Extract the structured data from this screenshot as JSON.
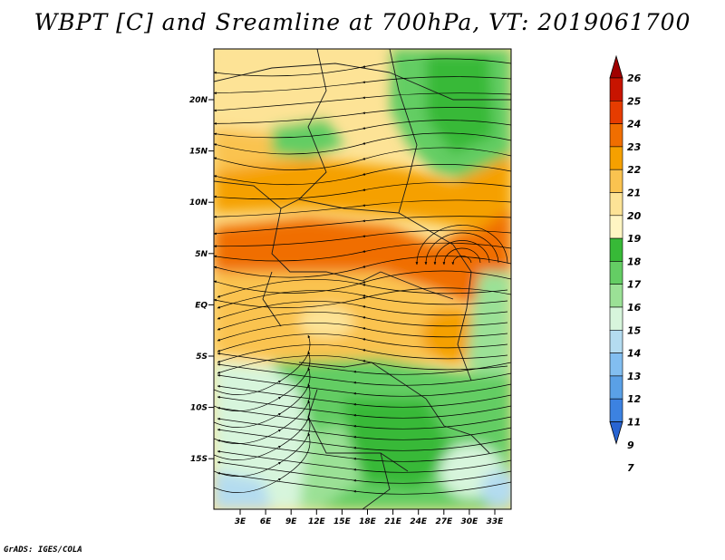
{
  "title": "WBPT [C] and Sreamline at 700hPa, VT: 2019061700",
  "credit": "GrADS: IGES/COLA",
  "lat_labels": [
    "20N",
    "15N",
    "10N",
    "5N",
    "EQ",
    "5S",
    "10S",
    "15S"
  ],
  "lon_labels": [
    "3E",
    "6E",
    "9E",
    "12E",
    "15E",
    "18E",
    "21E",
    "24E",
    "27E",
    "30E",
    "33E"
  ],
  "colorbar": {
    "labels": [
      "26",
      "25",
      "24",
      "23",
      "22",
      "21",
      "20",
      "19",
      "18",
      "17",
      "16",
      "15",
      "14",
      "13",
      "12",
      "11",
      "9",
      "7"
    ],
    "colors": [
      "#a00000",
      "#c81400",
      "#e63c00",
      "#f06e00",
      "#f5a000",
      "#fac350",
      "#fde396",
      "#fff5c3",
      "#37b937",
      "#64cd64",
      "#9be196",
      "#d7f5dc",
      "#b4dcf0",
      "#82bef0",
      "#5aa0e6",
      "#3c82e1",
      "#2864d2"
    ]
  },
  "field_colors": {
    "hot": "#f06e00",
    "warm": "#f5a000",
    "mild": "#fac350",
    "pale": "#fde396",
    "green": "#64cd64",
    "green_dark": "#37b937",
    "green_light": "#9be196",
    "cool": "#d7f5dc",
    "cold": "#b4dcf0"
  }
}
